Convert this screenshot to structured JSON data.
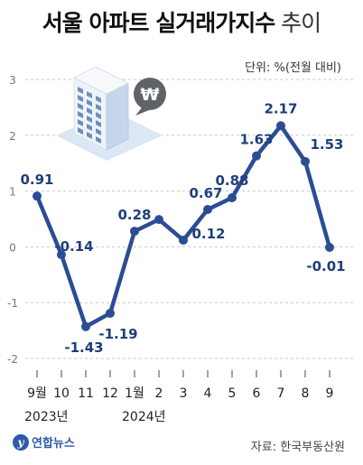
{
  "title": {
    "main": "서울 아파트 실거래가지수",
    "sub": "추이"
  },
  "unit_note": "단위: %(전월 대비)",
  "source": "자료: 한국부동산원",
  "logo_text": "연합뉴스",
  "colors": {
    "line": "#2a4d94",
    "label": "#1f3f7a",
    "grid": "#c8c8c8",
    "tick": "#555555"
  },
  "illustration": {
    "icon": "building-with-won-coin-icon",
    "coin_symbol": "₩"
  },
  "chart_data": {
    "type": "line",
    "categories": [
      "9월",
      "10",
      "11",
      "12",
      "1월",
      "2",
      "3",
      "4",
      "5",
      "6",
      "7",
      "8",
      "9"
    ],
    "year_labels": [
      {
        "text": "2023년",
        "index": 0
      },
      {
        "text": "2024년",
        "index": 4
      }
    ],
    "values": [
      0.91,
      -0.14,
      -1.43,
      -1.19,
      0.28,
      0.49,
      0.12,
      0.67,
      0.88,
      1.63,
      2.17,
      1.53,
      -0.01
    ],
    "data_labels": [
      "0.91",
      "-0.14",
      "-1.43",
      "-1.19",
      "0.28",
      "",
      "0.12",
      "0.67",
      "0.88",
      "1.63",
      "2.17",
      "1.53",
      "-0.01"
    ],
    "ylim": [
      -2,
      3
    ],
    "yticks": [
      3,
      2,
      1,
      0,
      -1,
      -2
    ],
    "grid": "dashed horizontal"
  }
}
